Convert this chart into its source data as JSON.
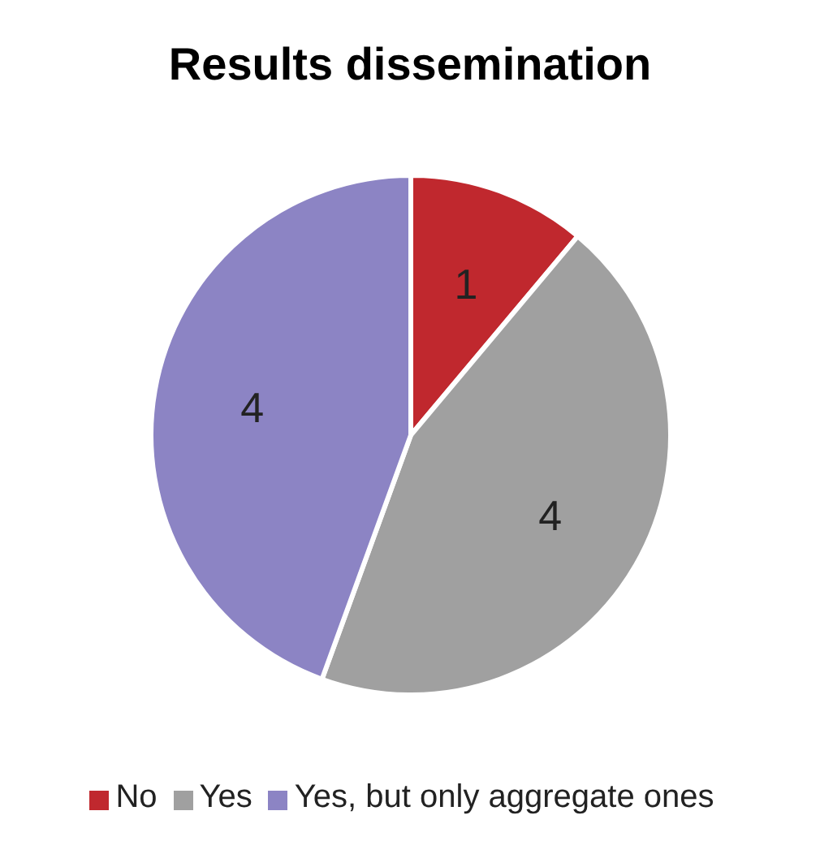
{
  "chart_data": {
    "type": "pie",
    "title": "Results dissemination",
    "categories": [
      "No",
      "Yes",
      "Yes, but only aggregate ones"
    ],
    "values": [
      1,
      4,
      4
    ],
    "colors": [
      "#c0282e",
      "#a0a0a0",
      "#8c84c4"
    ],
    "data_labels": true,
    "legend": "bottom"
  }
}
